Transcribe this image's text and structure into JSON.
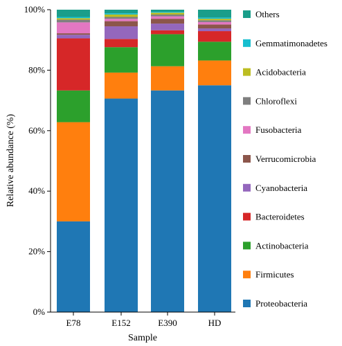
{
  "chart_data": {
    "type": "bar",
    "stacked": true,
    "xlabel": "Sample",
    "ylabel": "Relative abundance (%)",
    "ylim": [
      0,
      100
    ],
    "yticks": [
      "0%",
      "20%",
      "40%",
      "60%",
      "80%",
      "100%"
    ],
    "categories": [
      "E78",
      "E152",
      "E390",
      "HD"
    ],
    "legend_position": "right",
    "series": [
      {
        "name": "Proteobacteria",
        "color": "#1f77b4",
        "values": [
          30,
          70.6,
          73.3,
          75
        ]
      },
      {
        "name": "Firmicutes",
        "color": "#ff7f0e",
        "values": [
          32.8,
          8.6,
          8.0,
          8.2
        ]
      },
      {
        "name": "Actinobacteria",
        "color": "#2ca02c",
        "values": [
          10.5,
          8.4,
          10.6,
          6.2
        ]
      },
      {
        "name": "Bacteroidetes",
        "color": "#d62728",
        "values": [
          17.2,
          2.7,
          1.3,
          3.5
        ]
      },
      {
        "name": "Cyanobacteria",
        "color": "#9467bd",
        "values": [
          1.2,
          4.2,
          2.2,
          0.9
        ]
      },
      {
        "name": "Verrucomicrobia",
        "color": "#8c564b",
        "values": [
          0.5,
          1.7,
          1.6,
          1.3
        ]
      },
      {
        "name": "Fusobacteria",
        "color": "#e377c2",
        "values": [
          3.6,
          0.8,
          0.8,
          0.8
        ]
      },
      {
        "name": "Chloroflexi",
        "color": "#7f7f7f",
        "values": [
          0.9,
          0.6,
          0.6,
          0.6
        ]
      },
      {
        "name": "Acidobacteria",
        "color": "#bcbd22",
        "values": [
          0.5,
          0.8,
          0.6,
          0.5
        ]
      },
      {
        "name": "Gemmatimonadetes",
        "color": "#17becf",
        "values": [
          0.4,
          0.4,
          0.3,
          0.4
        ]
      },
      {
        "name": "Others",
        "color": "#1a9e8a",
        "values": [
          2.4,
          1.2,
          0.7,
          2.6
        ]
      }
    ]
  }
}
